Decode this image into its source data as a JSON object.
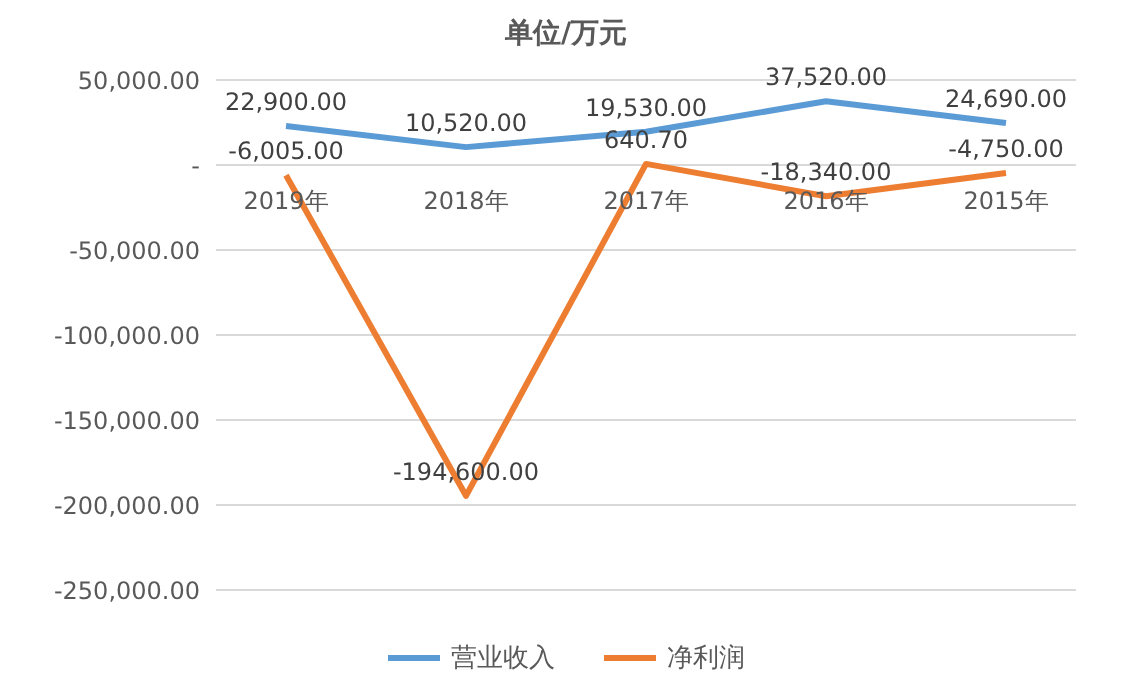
{
  "chart_data": {
    "type": "line",
    "title": "单位/万元",
    "categories": [
      "2019年",
      "2018年",
      "2017年",
      "2016年",
      "2015年"
    ],
    "series": [
      {
        "name": "营业收入",
        "color": "#5b9bd5",
        "values": [
          22900,
          10520,
          19530,
          37520,
          24690
        ],
        "value_labels": [
          "22,900.00",
          "10,520.00",
          "19,530.00",
          "37,520.00",
          "24,690.00"
        ]
      },
      {
        "name": "净利润",
        "color": "#ed7d31",
        "values": [
          -6005,
          -194600,
          640.7,
          -18340,
          -4750
        ],
        "value_labels": [
          "-6,005.00",
          "-194,600.00",
          "640.70",
          "-18,340.00",
          "-4,750.00"
        ]
      }
    ],
    "ylim": [
      -250000,
      50000
    ],
    "yticks": [
      {
        "value": -250000,
        "label": "-250,000.00"
      },
      {
        "value": -200000,
        "label": "-200,000.00"
      },
      {
        "value": -150000,
        "label": "-150,000.00"
      },
      {
        "value": -100000,
        "label": "-100,000.00"
      },
      {
        "value": -50000,
        "label": "-50,000.00"
      },
      {
        "value": 0,
        "label": "-"
      },
      {
        "value": 50000,
        "label": "50,000.00"
      }
    ],
    "grid": "y",
    "legend": "bottom",
    "marker": "none",
    "line_style": "solid"
  }
}
